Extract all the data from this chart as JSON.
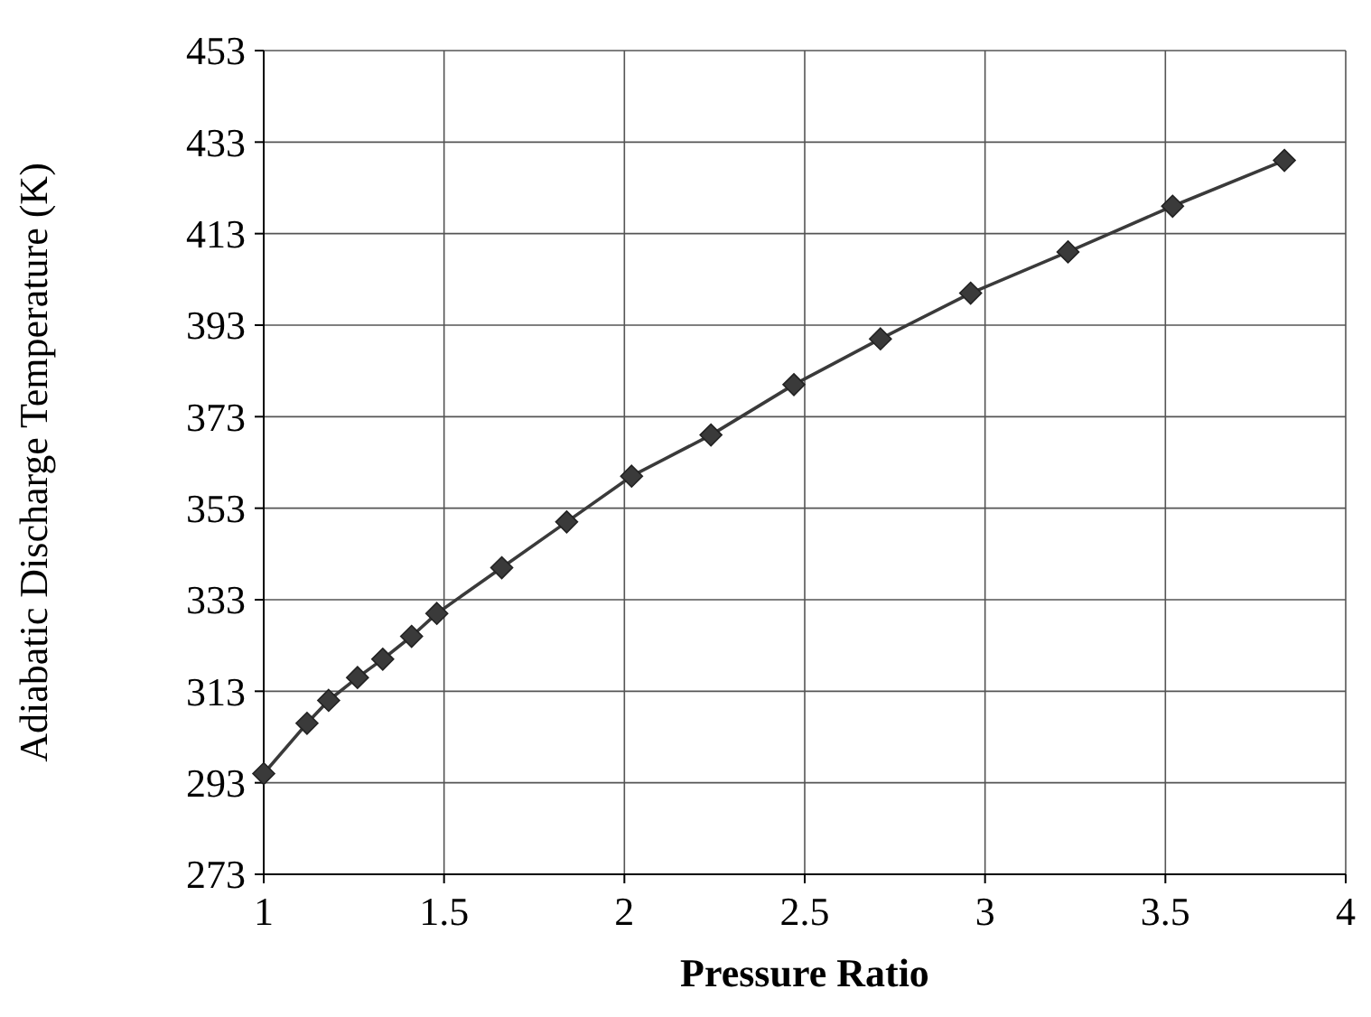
{
  "chart_data": {
    "type": "line",
    "xlabel": "Pressure Ratio",
    "ylabel": "Adiabatic Discharge Temperature (K)",
    "xlim": [
      1,
      4
    ],
    "xticks": [
      1,
      1.5,
      2,
      2.5,
      3,
      3.5,
      4
    ],
    "ylim": [
      273,
      453
    ],
    "yticks": [
      273,
      293,
      313,
      333,
      353,
      373,
      393,
      413,
      433,
      453
    ],
    "grid": true,
    "marker": "diamond",
    "line_style": "solid",
    "series": [
      {
        "color": "#3a3a3a",
        "x": [
          1.0,
          1.12,
          1.18,
          1.26,
          1.33,
          1.41,
          1.48,
          1.66,
          1.84,
          2.02,
          2.24,
          2.47,
          2.71,
          2.96,
          3.23,
          3.52,
          3.83
        ],
        "values": [
          295,
          306,
          311,
          316,
          320,
          325,
          330,
          340,
          350,
          360,
          369,
          380,
          390,
          400,
          409,
          419,
          429
        ]
      }
    ]
  }
}
